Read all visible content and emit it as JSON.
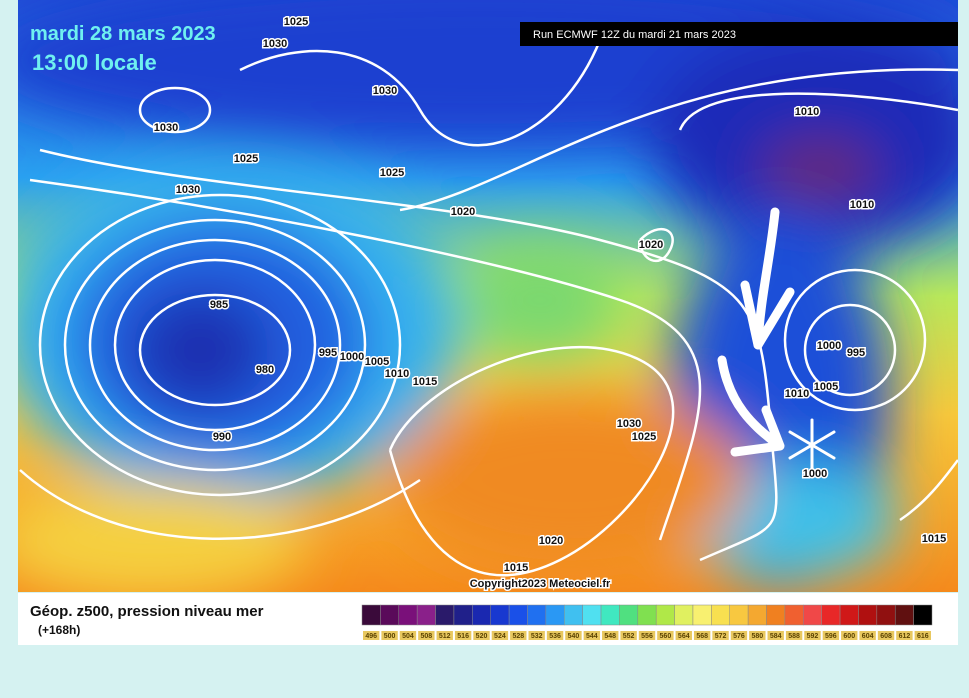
{
  "header": {
    "date": "mardi 28 mars 2023",
    "time": "13:00 locale",
    "run": "Run ECMWF 12Z du mardi 21 mars 2023"
  },
  "map": {
    "isobar_labels": [
      "1025",
      "1030",
      "1030",
      "1030",
      "1025",
      "1030",
      "1025",
      "1020",
      "1020",
      "985",
      "980",
      "995",
      "1000",
      "1005",
      "1010",
      "1015",
      "990",
      "1010",
      "1010",
      "1000",
      "995",
      "1010",
      "1005",
      "1030",
      "1025",
      "1000",
      "1020",
      "1015",
      "1015"
    ],
    "copyright": "Copyright2023 Meteociel.fr"
  },
  "legend": {
    "title": "Géop. z500, pression niveau mer",
    "lead": "(+168h)",
    "scale": [
      496,
      500,
      504,
      508,
      512,
      516,
      520,
      524,
      528,
      532,
      536,
      540,
      544,
      548,
      552,
      556,
      560,
      564,
      568,
      572,
      576,
      580,
      584,
      588,
      592,
      596,
      600,
      604,
      608,
      612,
      616
    ]
  }
}
